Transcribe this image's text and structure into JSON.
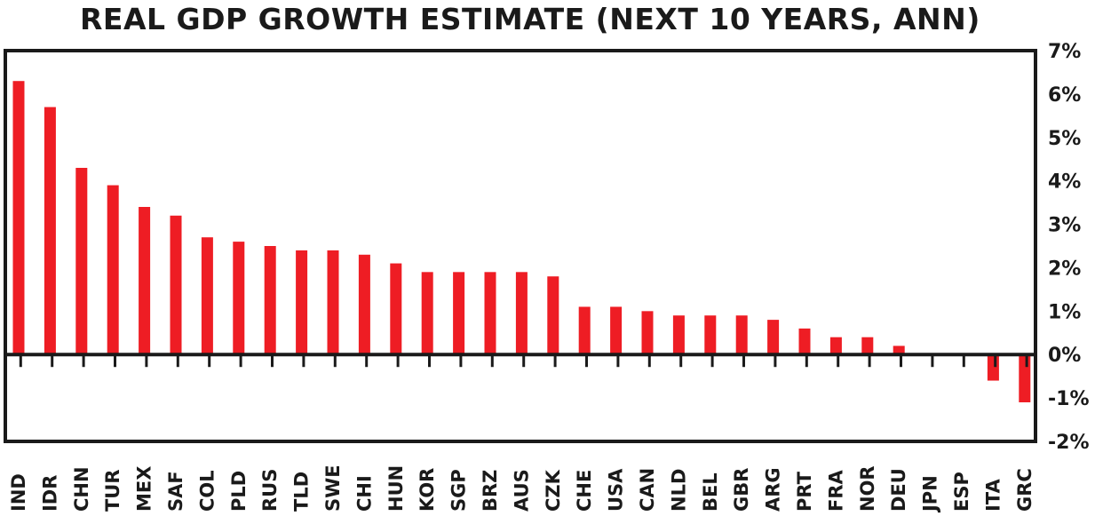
{
  "chart_data": {
    "type": "bar",
    "title": "REAL GDP GROWTH ESTIMATE (NEXT 10 YEARS, ANN)",
    "xlabel": "",
    "ylabel": "",
    "ylim": [
      -2,
      7
    ],
    "yticks": [
      "7%",
      "6%",
      "5%",
      "4%",
      "3%",
      "2%",
      "1%",
      "0%",
      "-1%",
      "-2%"
    ],
    "ytick_values": [
      7,
      6,
      5,
      4,
      3,
      2,
      1,
      0,
      -1,
      -2
    ],
    "y_axis_position": "right",
    "grid": false,
    "bar_color": "#ee1d24",
    "categories": [
      "IND",
      "IDR",
      "CHN",
      "TUR",
      "MEX",
      "SAF",
      "COL",
      "PLD",
      "RUS",
      "TLD",
      "SWE",
      "CHI",
      "HUN",
      "KOR",
      "SGP",
      "BRZ",
      "AUS",
      "CZK",
      "CHE",
      "USA",
      "CAN",
      "NLD",
      "BEL",
      "GBR",
      "ARG",
      "PRT",
      "FRA",
      "NOR",
      "DEU",
      "JPN",
      "ESP",
      "ITA",
      "GRC"
    ],
    "values": [
      6.3,
      5.7,
      4.3,
      3.9,
      3.4,
      3.2,
      2.7,
      2.6,
      2.5,
      2.4,
      2.4,
      2.3,
      2.1,
      1.9,
      1.9,
      1.9,
      1.9,
      1.8,
      1.1,
      1.1,
      1.0,
      0.9,
      0.9,
      0.9,
      0.8,
      0.6,
      0.4,
      0.4,
      0.2,
      0.0,
      0.0,
      -0.6,
      -1.1
    ]
  }
}
